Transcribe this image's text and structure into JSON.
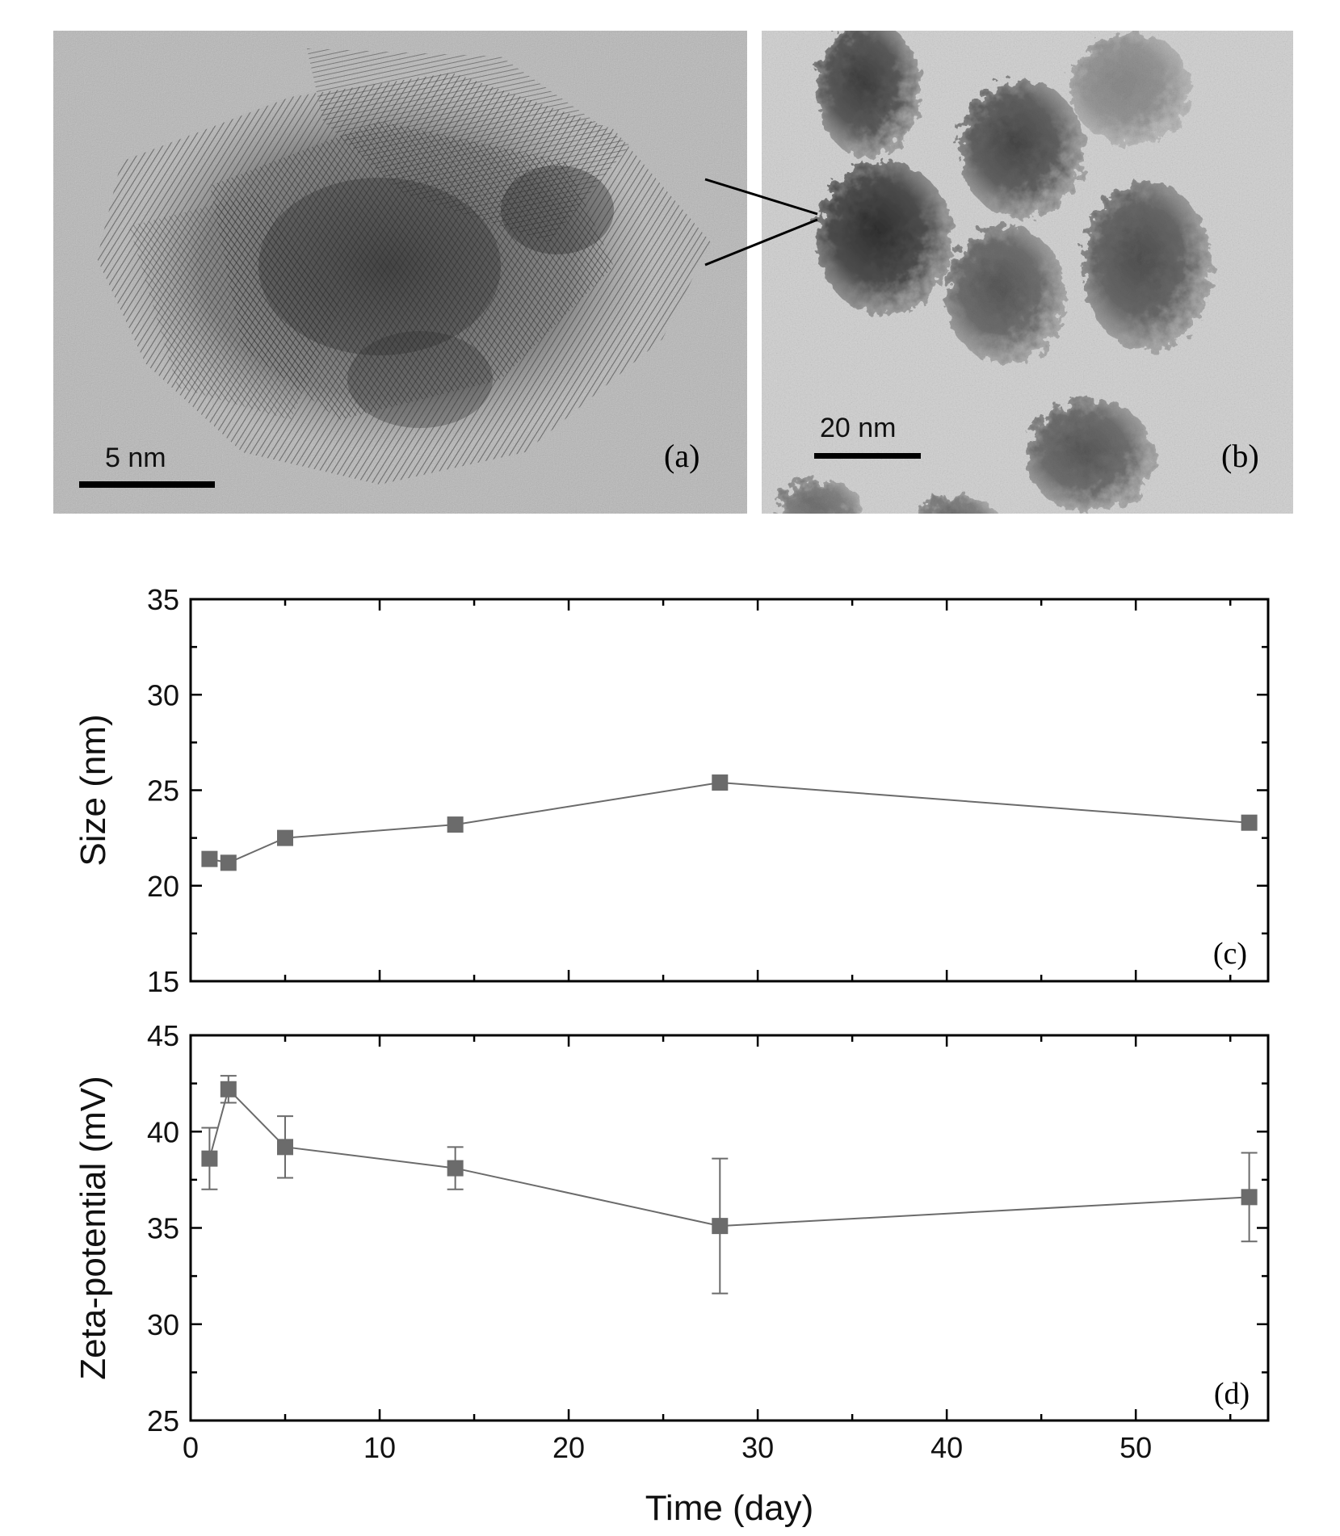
{
  "figure": {
    "panel_a": {
      "label": "(a)",
      "scale_bar": "5 nm"
    },
    "panel_b": {
      "label": "(b)",
      "scale_bar": "20 nm"
    }
  },
  "chart_data": [
    {
      "type": "line",
      "panel_label": "(c)",
      "ylabel": "Size (nm)",
      "xlabel": "",
      "xlim": [
        0,
        57
      ],
      "ylim": [
        15,
        35
      ],
      "x_ticks": [
        0,
        10,
        20,
        30,
        40,
        50
      ],
      "y_ticks": [
        15,
        20,
        25,
        30,
        35
      ],
      "x_tick_labels_shown": false,
      "marker": "square",
      "color": "#6b6b6b",
      "series": [
        {
          "x": [
            1,
            2,
            5,
            14,
            28,
            56
          ],
          "y": [
            21.4,
            21.2,
            22.5,
            23.2,
            25.4,
            23.3
          ]
        }
      ]
    },
    {
      "type": "line",
      "panel_label": "(d)",
      "ylabel": "Zeta-potential (mV)",
      "xlabel": "Time (day)",
      "xlim": [
        0,
        57
      ],
      "ylim": [
        25,
        45
      ],
      "x_ticks": [
        0,
        10,
        20,
        30,
        40,
        50
      ],
      "y_ticks": [
        25,
        30,
        35,
        40,
        45
      ],
      "x_tick_labels_shown": true,
      "marker": "square",
      "color": "#6b6b6b",
      "series": [
        {
          "x": [
            1,
            2,
            5,
            14,
            28,
            56
          ],
          "y": [
            38.6,
            42.2,
            39.2,
            38.1,
            35.1,
            36.6
          ],
          "error": [
            1.6,
            0.7,
            1.6,
            1.1,
            3.5,
            2.3
          ]
        }
      ]
    }
  ]
}
